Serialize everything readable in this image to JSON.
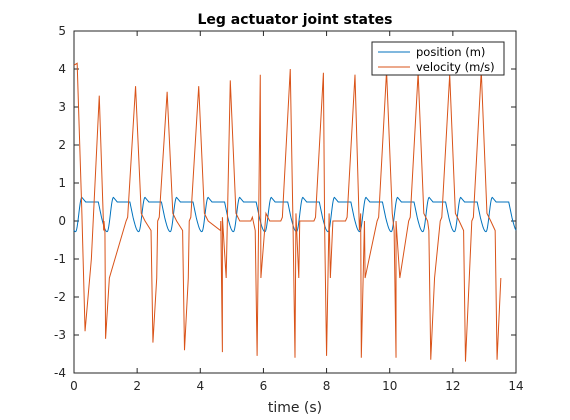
{
  "chart_data": {
    "type": "line",
    "title": "Leg actuator joint states",
    "xlabel": "time (s)",
    "ylabel": "",
    "xlim": [
      0,
      14
    ],
    "ylim": [
      -4,
      5
    ],
    "x_ticks": [
      "0",
      "2",
      "4",
      "6",
      "8",
      "10",
      "12",
      "14"
    ],
    "y_ticks": [
      "-4",
      "-3",
      "-2",
      "-1",
      "0",
      "1",
      "2",
      "3",
      "4",
      "5"
    ],
    "grid": false,
    "legend_position": "top-right",
    "period_s": 1.0,
    "series": [
      {
        "name": "position (m)",
        "color": "#0072BD",
        "step_peaks_s": [
          0.25,
          0.8,
          2.0,
          3.0,
          4.0,
          5.0,
          6.0,
          7.0,
          8.0,
          9.0,
          10.0,
          11.0,
          12.0,
          13.0,
          14.0
        ],
        "plateau_value": 0.5,
        "peak_value": 0.62,
        "trough_value": -0.28
      },
      {
        "name": "velocity (m/s)",
        "color": "#D95319",
        "peaks": [
          {
            "x": 0.1,
            "y": 4.15
          },
          {
            "x": 0.8,
            "y": 3.3
          },
          {
            "x": 1.95,
            "y": 3.55
          },
          {
            "x": 2.95,
            "y": 3.4
          },
          {
            "x": 3.95,
            "y": 3.55
          },
          {
            "x": 4.95,
            "y": 3.7
          },
          {
            "x": 5.9,
            "y": 3.85
          },
          {
            "x": 6.85,
            "y": 4.0
          },
          {
            "x": 7.9,
            "y": 3.9
          },
          {
            "x": 8.9,
            "y": 3.85
          },
          {
            "x": 9.9,
            "y": 3.95
          },
          {
            "x": 10.9,
            "y": 3.9
          },
          {
            "x": 11.9,
            "y": 3.85
          },
          {
            "x": 12.9,
            "y": 3.95
          },
          {
            "x": 13.98,
            "y": 2.95
          }
        ],
        "troughs": [
          {
            "x": 1.0,
            "y": -3.1
          },
          {
            "x": 2.5,
            "y": -3.2
          },
          {
            "x": 3.5,
            "y": -3.4
          },
          {
            "x": 4.7,
            "y": -3.45
          },
          {
            "x": 5.8,
            "y": -3.55
          },
          {
            "x": 7.0,
            "y": -3.6
          },
          {
            "x": 8.0,
            "y": -3.55
          },
          {
            "x": 9.1,
            "y": -3.6
          },
          {
            "x": 10.2,
            "y": -3.6
          },
          {
            "x": 11.3,
            "y": -3.65
          },
          {
            "x": 12.4,
            "y": -3.7
          },
          {
            "x": 13.4,
            "y": -3.65
          }
        ],
        "early_trough": {
          "x": 0.35,
          "y": -2.9
        }
      }
    ]
  }
}
